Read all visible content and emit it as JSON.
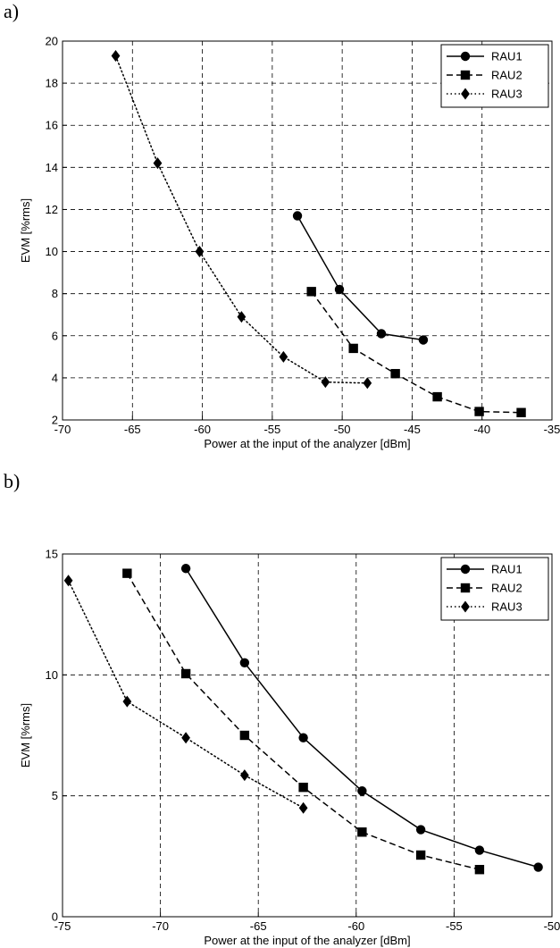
{
  "chart_data": [
    {
      "type": "line",
      "panel_label": "a)",
      "xlabel": "Power at the input of the analyzer [dBm]",
      "ylabel": "EVM [%rms]",
      "xlim": [
        -70,
        -35
      ],
      "ylim": [
        2,
        20
      ],
      "xticks": [
        -70,
        -65,
        -60,
        -55,
        -50,
        -45,
        -40,
        -35
      ],
      "yticks": [
        2,
        4,
        6,
        8,
        10,
        12,
        14,
        16,
        18,
        20
      ],
      "grid": true,
      "legend_position": "top-right",
      "series": [
        {
          "name": "RAU1",
          "marker": "circle",
          "dash": "solid",
          "x": [
            -53.2,
            -50.2,
            -47.2,
            -44.2
          ],
          "y": [
            11.7,
            8.2,
            6.1,
            5.8
          ]
        },
        {
          "name": "RAU2",
          "marker": "square",
          "dash": "dashed",
          "x": [
            -52.2,
            -49.2,
            -46.2,
            -43.2,
            -40.2,
            -37.2
          ],
          "y": [
            8.1,
            5.4,
            4.2,
            3.1,
            2.4,
            2.35
          ]
        },
        {
          "name": "RAU3",
          "marker": "diamond",
          "dash": "dotted",
          "x": [
            -66.2,
            -63.2,
            -60.2,
            -57.2,
            -54.2,
            -51.2,
            -48.2
          ],
          "y": [
            19.3,
            14.2,
            10.0,
            6.9,
            5.0,
            3.8,
            3.75
          ]
        }
      ]
    },
    {
      "type": "line",
      "panel_label": "b)",
      "xlabel": "Power at the input of the analyzer [dBm]",
      "ylabel": "EVM [%rms]",
      "xlim": [
        -75,
        -50
      ],
      "ylim": [
        0,
        15
      ],
      "xticks": [
        -75,
        -70,
        -65,
        -60,
        -55,
        -50
      ],
      "yticks": [
        0,
        5,
        10,
        15
      ],
      "grid": true,
      "legend_position": "top-right",
      "series": [
        {
          "name": "RAU1",
          "marker": "circle",
          "dash": "solid",
          "x": [
            -68.7,
            -65.7,
            -62.7,
            -59.7,
            -56.7,
            -53.7,
            -50.7
          ],
          "y": [
            14.4,
            10.5,
            7.4,
            5.2,
            3.6,
            2.75,
            2.05
          ]
        },
        {
          "name": "RAU2",
          "marker": "square",
          "dash": "dashed",
          "x": [
            -71.7,
            -68.7,
            -65.7,
            -62.7,
            -59.7,
            -56.7,
            -53.7
          ],
          "y": [
            14.2,
            10.05,
            7.5,
            5.35,
            3.5,
            2.55,
            1.95
          ]
        },
        {
          "name": "RAU3",
          "marker": "diamond",
          "dash": "dotted",
          "x": [
            -74.7,
            -71.7,
            -68.7,
            -65.7,
            -62.7
          ],
          "y": [
            13.9,
            8.9,
            7.4,
            5.85,
            4.5
          ]
        }
      ]
    }
  ]
}
